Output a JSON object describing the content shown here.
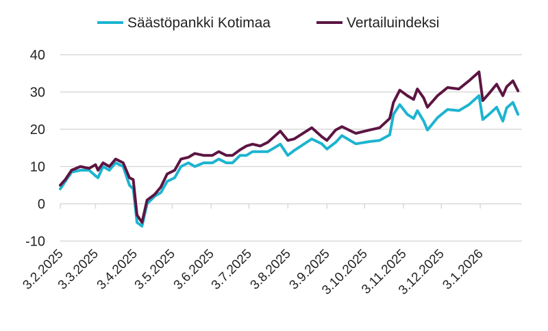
{
  "chart_data": {
    "type": "line",
    "title": "",
    "xlabel": "",
    "ylabel": "",
    "x_unit": "days since 3.2.2025",
    "ylim": [
      -10,
      40
    ],
    "yticks": [
      -10,
      0,
      10,
      20,
      30,
      40
    ],
    "ytick_labels": [
      "-10",
      "0",
      "10",
      "20",
      "30",
      "40"
    ],
    "xticks": [
      0,
      28,
      59,
      89,
      120,
      150,
      181,
      212,
      242,
      273,
      303,
      334
    ],
    "xtick_labels": [
      "3.2.2025",
      "3.3.2025",
      "3.4.2025",
      "3.5.2025",
      "3.6.2025",
      "3.7.2025",
      "3.8.2025",
      "3.9.2025",
      "3.10.2025",
      "3.11.2025",
      "3.12.2025",
      "3.1.2026"
    ],
    "xlim": [
      0,
      365
    ],
    "grid": "horizontal",
    "legend_position": "top",
    "x": [
      0,
      4,
      9,
      16,
      23,
      28,
      30,
      34,
      39,
      44,
      50,
      55,
      58,
      61,
      65,
      69,
      75,
      80,
      85,
      91,
      96,
      102,
      107,
      114,
      121,
      126,
      132,
      137,
      143,
      148,
      153,
      159,
      165,
      170,
      175,
      181,
      186,
      200,
      208,
      212,
      219,
      224,
      235,
      246,
      254,
      262,
      265,
      270,
      276,
      281,
      284,
      289,
      292,
      300,
      308,
      317,
      325,
      333,
      336,
      341,
      347,
      352,
      355,
      360,
      364
    ],
    "series": [
      {
        "name": "Säästöpankki Kotimaa",
        "color": "#1cb4d0",
        "values": [
          4,
          6,
          8.5,
          9,
          9,
          7.5,
          7,
          10,
          9,
          11,
          10,
          5,
          4,
          -5,
          -6,
          0,
          2,
          3,
          6,
          7,
          10,
          11,
          10,
          11,
          11,
          12,
          11,
          11,
          13,
          13,
          14,
          14,
          14,
          15,
          16,
          13,
          14.3,
          17.4,
          16.1,
          14.7,
          16.5,
          18.3,
          16.1,
          16.7,
          17,
          18.5,
          24,
          26.6,
          24,
          22.9,
          25,
          22.2,
          19.8,
          23.1,
          25.3,
          25,
          26.6,
          29,
          22.6,
          24,
          25.9,
          22.2,
          25.7,
          27.2,
          24
        ]
      },
      {
        "name": "Vertailuindeksi",
        "color": "#5c1542",
        "values": [
          5,
          6.5,
          9,
          10,
          9.5,
          10.5,
          9,
          11,
          10,
          12,
          11,
          7,
          6.5,
          -3,
          -5,
          1,
          2.5,
          4.5,
          8,
          9,
          12,
          12.5,
          13.5,
          13,
          13,
          14,
          13,
          13,
          14.5,
          15.5,
          16,
          15.5,
          16.5,
          18,
          19.5,
          17,
          17.4,
          20.4,
          18,
          17,
          19.8,
          20.7,
          18.9,
          19.8,
          20.4,
          22.9,
          27.2,
          30.5,
          29,
          28,
          30.8,
          28.4,
          25.9,
          29,
          31.2,
          30.8,
          33,
          35.4,
          27.7,
          29.6,
          32.1,
          29,
          31.4,
          33,
          30.3
        ]
      }
    ]
  }
}
